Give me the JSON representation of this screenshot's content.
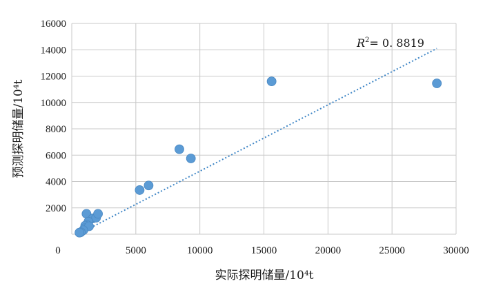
{
  "chart_data": {
    "type": "scatter",
    "xlabel": "实际探明储量/10⁴t",
    "ylabel": "预测探明储量/10⁴t",
    "xlim": [
      0,
      30000
    ],
    "ylim": [
      0,
      16000
    ],
    "x_ticks": [
      0,
      5000,
      10000,
      15000,
      20000,
      25000,
      30000
    ],
    "y_ticks": [
      2000,
      4000,
      6000,
      8000,
      10000,
      12000,
      14000,
      16000
    ],
    "grid": true,
    "marker_color": "#5b9bd5",
    "trendline": {
      "type": "linear",
      "style": "dotted",
      "color": "#3f86c6",
      "from": [
        500,
        0
      ],
      "to": [
        28500,
        14100
      ],
      "label_prefix": "R",
      "label_sup": "2",
      "label_value": "= 0. 8819"
    },
    "points": [
      {
        "x": 1150,
        "y": 1550
      },
      {
        "x": 1650,
        "y": 1200
      },
      {
        "x": 1900,
        "y": 1250
      },
      {
        "x": 2050,
        "y": 1550
      },
      {
        "x": 1300,
        "y": 950
      },
      {
        "x": 1200,
        "y": 700
      },
      {
        "x": 1050,
        "y": 650
      },
      {
        "x": 1000,
        "y": 450
      },
      {
        "x": 1350,
        "y": 600
      },
      {
        "x": 900,
        "y": 300
      },
      {
        "x": 700,
        "y": 150
      },
      {
        "x": 600,
        "y": 120
      },
      {
        "x": 5300,
        "y": 3350
      },
      {
        "x": 6000,
        "y": 3700
      },
      {
        "x": 8400,
        "y": 6450
      },
      {
        "x": 9300,
        "y": 5750
      },
      {
        "x": 15600,
        "y": 11600
      },
      {
        "x": 28500,
        "y": 11450
      }
    ]
  }
}
